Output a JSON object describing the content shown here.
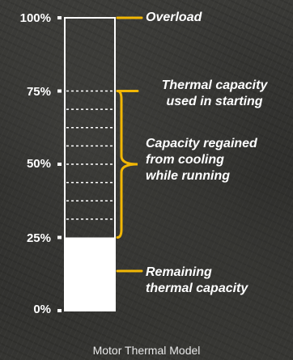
{
  "colors": {
    "accent": "#f2b705",
    "bar_outline": "#ffffff",
    "remaining_fill": "#ffffff",
    "text": "#ffffff"
  },
  "scale": {
    "p100": "100%",
    "p75": "75%",
    "p50": "50%",
    "p25": "25%",
    "p0": "0%"
  },
  "levels": {
    "remaining_capacity_percent": 25,
    "starting_capacity_percent": 75,
    "dashed_divisions_between_25_and_75": 8
  },
  "callouts": {
    "overload": "Overload",
    "thermal_capacity_line1": "Thermal capacity",
    "thermal_capacity_line2": "used in starting",
    "regained_line1": "Capacity regained",
    "regained_line2": "from cooling",
    "regained_line3": "while running",
    "remaining_line1": "Remaining",
    "remaining_line2": "thermal capacity"
  },
  "caption": "Motor Thermal Model"
}
